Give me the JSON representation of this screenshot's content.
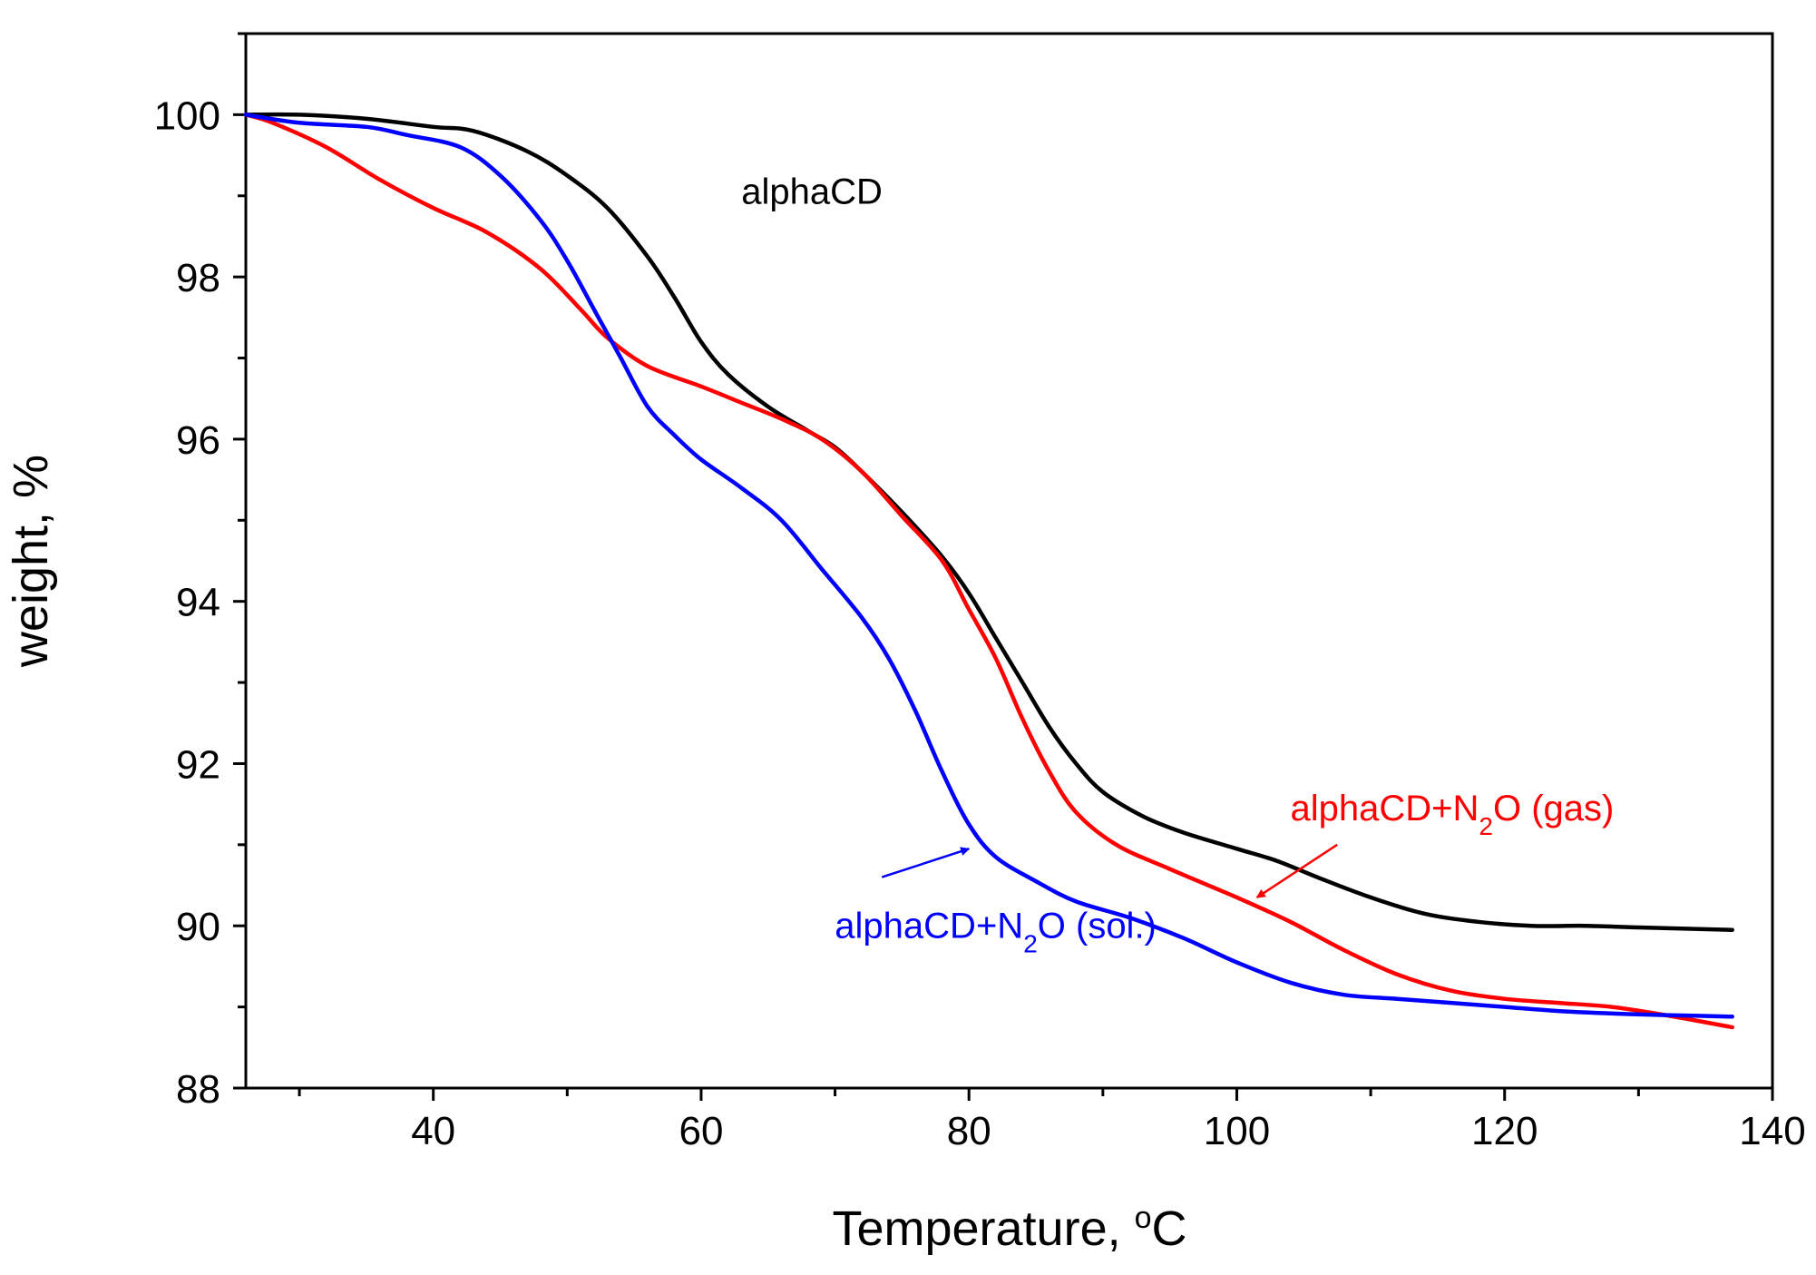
{
  "chart_data": {
    "type": "line",
    "title": "",
    "xlabel": {
      "text": "Temperature, ",
      "sup": "o",
      "unit": "C"
    },
    "ylabel": "weight, %",
    "xlim": [
      26,
      140
    ],
    "ylim": [
      88,
      101
    ],
    "xticks": [
      40,
      60,
      80,
      100,
      120,
      140
    ],
    "yticks": [
      88,
      90,
      92,
      94,
      96,
      98,
      100
    ],
    "xtick_labels": [
      "40",
      "60",
      "80",
      "100",
      "120",
      "140"
    ],
    "ytick_labels": [
      "88",
      "90",
      "92",
      "94",
      "96",
      "98",
      "100"
    ],
    "x_minor_step": 10,
    "y_minor_step": 1,
    "grid": false,
    "series": [
      {
        "name": "alphaCD",
        "color": "#000000",
        "points": [
          [
            26,
            100.0
          ],
          [
            30,
            100.0
          ],
          [
            35,
            99.95
          ],
          [
            40,
            99.85
          ],
          [
            43,
            99.8
          ],
          [
            47,
            99.55
          ],
          [
            50,
            99.25
          ],
          [
            53,
            98.85
          ],
          [
            56,
            98.25
          ],
          [
            58,
            97.75
          ],
          [
            60,
            97.2
          ],
          [
            62,
            96.8
          ],
          [
            65,
            96.4
          ],
          [
            68,
            96.1
          ],
          [
            70,
            95.9
          ],
          [
            72,
            95.6
          ],
          [
            75,
            95.1
          ],
          [
            78,
            94.55
          ],
          [
            80,
            94.1
          ],
          [
            82,
            93.55
          ],
          [
            84,
            93.0
          ],
          [
            86,
            92.45
          ],
          [
            88,
            92.0
          ],
          [
            90,
            91.65
          ],
          [
            93,
            91.35
          ],
          [
            96,
            91.15
          ],
          [
            100,
            90.95
          ],
          [
            103,
            90.8
          ],
          [
            106,
            90.6
          ],
          [
            110,
            90.35
          ],
          [
            114,
            90.15
          ],
          [
            118,
            90.05
          ],
          [
            122,
            90.0
          ],
          [
            126,
            90.0
          ],
          [
            130,
            89.98
          ],
          [
            137,
            89.95
          ]
        ]
      },
      {
        "name": "alphaCD+N2O (gas)",
        "color": "#ff0000",
        "points": [
          [
            26,
            100.0
          ],
          [
            28,
            99.9
          ],
          [
            32,
            99.6
          ],
          [
            36,
            99.2
          ],
          [
            40,
            98.85
          ],
          [
            44,
            98.55
          ],
          [
            48,
            98.1
          ],
          [
            51,
            97.6
          ],
          [
            53,
            97.25
          ],
          [
            56,
            96.9
          ],
          [
            60,
            96.65
          ],
          [
            63,
            96.45
          ],
          [
            66,
            96.25
          ],
          [
            69,
            96.0
          ],
          [
            72,
            95.6
          ],
          [
            75,
            95.05
          ],
          [
            78,
            94.5
          ],
          [
            80,
            93.9
          ],
          [
            82,
            93.3
          ],
          [
            84,
            92.55
          ],
          [
            86,
            91.9
          ],
          [
            88,
            91.4
          ],
          [
            91,
            91.0
          ],
          [
            95,
            90.7
          ],
          [
            100,
            90.35
          ],
          [
            104,
            90.05
          ],
          [
            108,
            89.7
          ],
          [
            112,
            89.4
          ],
          [
            116,
            89.2
          ],
          [
            120,
            89.1
          ],
          [
            124,
            89.05
          ],
          [
            128,
            89.0
          ],
          [
            132,
            88.9
          ],
          [
            137,
            88.75
          ]
        ]
      },
      {
        "name": "alphaCD+N2O (sol.)",
        "color": "#0000ff",
        "points": [
          [
            26,
            100.0
          ],
          [
            30,
            99.9
          ],
          [
            35,
            99.85
          ],
          [
            38,
            99.75
          ],
          [
            42,
            99.6
          ],
          [
            45,
            99.25
          ],
          [
            48,
            98.7
          ],
          [
            50,
            98.2
          ],
          [
            52,
            97.6
          ],
          [
            54,
            97.0
          ],
          [
            56,
            96.4
          ],
          [
            58,
            96.05
          ],
          [
            60,
            95.75
          ],
          [
            63,
            95.4
          ],
          [
            66,
            95.0
          ],
          [
            69,
            94.4
          ],
          [
            72,
            93.8
          ],
          [
            74,
            93.3
          ],
          [
            76,
            92.65
          ],
          [
            78,
            91.9
          ],
          [
            80,
            91.25
          ],
          [
            82,
            90.85
          ],
          [
            85,
            90.55
          ],
          [
            88,
            90.3
          ],
          [
            92,
            90.1
          ],
          [
            96,
            89.85
          ],
          [
            100,
            89.55
          ],
          [
            104,
            89.3
          ],
          [
            108,
            89.15
          ],
          [
            112,
            89.1
          ],
          [
            116,
            89.05
          ],
          [
            120,
            89.0
          ],
          [
            124,
            88.95
          ],
          [
            128,
            88.92
          ],
          [
            132,
            88.9
          ],
          [
            137,
            88.88
          ]
        ]
      }
    ],
    "annotations": [
      {
        "name": "alphacd-label",
        "parts": [
          {
            "t": "alphaCD"
          }
        ],
        "color": "#000000",
        "at": [
          63,
          98.9
        ],
        "anchor": "start"
      },
      {
        "name": "gas-label",
        "parts": [
          {
            "t": "alphaCD+N"
          },
          {
            "t": "2",
            "sub": true
          },
          {
            "t": "O (gas)"
          }
        ],
        "color": "#ff0000",
        "at": [
          104,
          91.3
        ],
        "anchor": "start",
        "arrow_from": [
          107.5,
          91.0
        ],
        "arrow_to": [
          101.5,
          90.35
        ]
      },
      {
        "name": "sol-label",
        "parts": [
          {
            "t": "alphaCD+N"
          },
          {
            "t": "2",
            "sub": true
          },
          {
            "t": "O (sol.)"
          }
        ],
        "color": "#0000ff",
        "at": [
          94,
          89.85
        ],
        "anchor": "end",
        "arrow_from": [
          73.5,
          90.6
        ],
        "arrow_to": [
          80,
          90.95
        ]
      }
    ]
  }
}
